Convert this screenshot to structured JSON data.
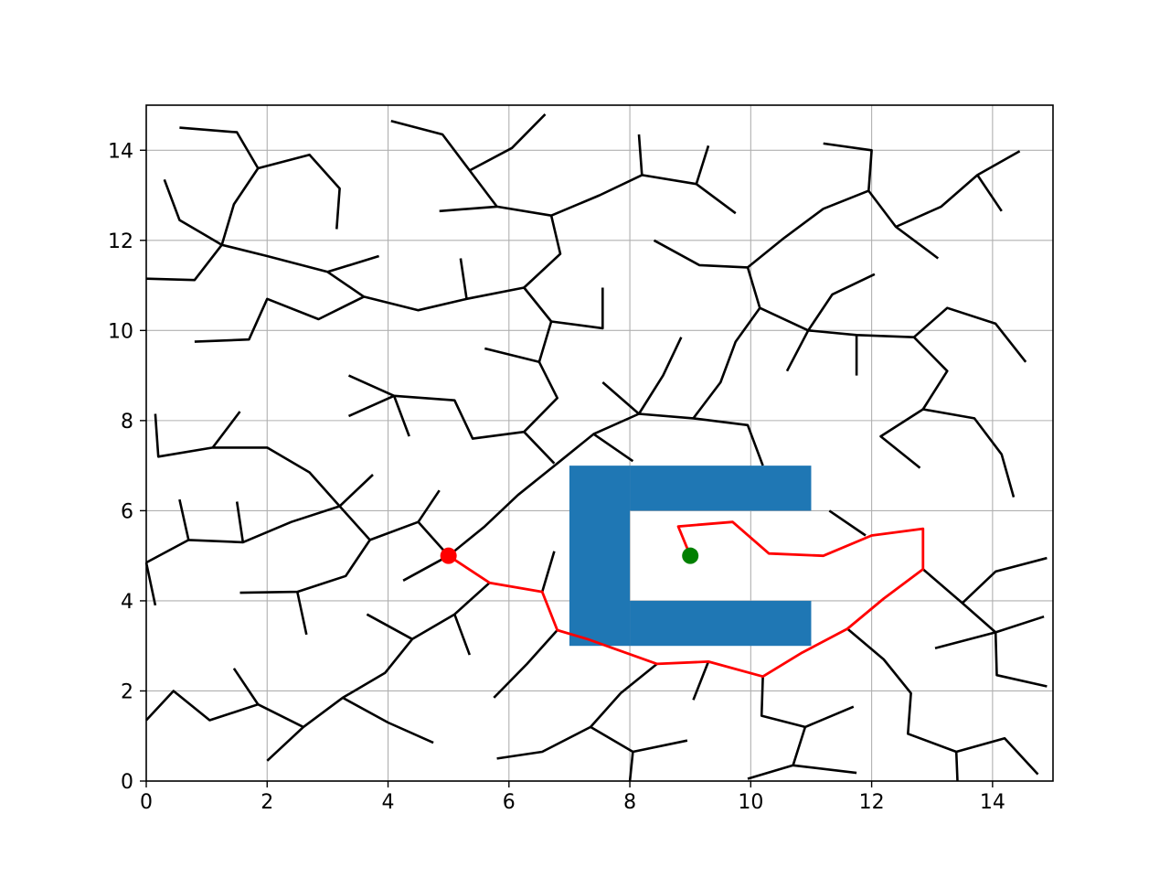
{
  "chart_data": {
    "type": "path-planning",
    "title": "",
    "xlabel": "",
    "ylabel": "",
    "xlim": [
      0,
      15
    ],
    "ylim": [
      0,
      15
    ],
    "grid": true,
    "x_ticks": [
      "0",
      "2",
      "4",
      "6",
      "8",
      "10",
      "12",
      "14"
    ],
    "y_ticks": [
      "0",
      "2",
      "4",
      "6",
      "8",
      "10",
      "12",
      "14"
    ],
    "colors": {
      "tree": "#000000",
      "path": "#ff0000",
      "obstacle": "#1f77b4",
      "start": "#ff0000",
      "goal": "#008000",
      "grid": "#b0b0b0"
    },
    "obstacles": [
      {
        "x0": 7,
        "y0": 3,
        "x1": 8,
        "y1": 7
      },
      {
        "x0": 8,
        "y0": 6,
        "x1": 11,
        "y1": 7
      },
      {
        "x0": 8,
        "y0": 3,
        "x1": 11,
        "y1": 4
      }
    ],
    "start": {
      "x": 5.0,
      "y": 5.0
    },
    "goal": {
      "x": 9.0,
      "y": 5.0
    },
    "path": [
      [
        5.0,
        5.0
      ],
      [
        5.68,
        4.4
      ],
      [
        6.55,
        4.2
      ],
      [
        6.8,
        3.35
      ],
      [
        7.3,
        3.15
      ],
      [
        8.45,
        2.6
      ],
      [
        9.3,
        2.65
      ],
      [
        10.2,
        2.32
      ],
      [
        10.85,
        2.85
      ],
      [
        11.6,
        3.38
      ],
      [
        12.2,
        4.05
      ],
      [
        12.85,
        4.7
      ],
      [
        12.85,
        5.6
      ],
      [
        12.0,
        5.45
      ],
      [
        11.2,
        5.0
      ],
      [
        10.3,
        5.05
      ],
      [
        9.7,
        5.75
      ],
      [
        8.8,
        5.65
      ],
      [
        9.0,
        5.0
      ]
    ],
    "tree": [
      [
        [
          0.55,
          14.5
        ],
        [
          1.5,
          14.4
        ],
        [
          1.85,
          13.6
        ],
        [
          1.45,
          12.8
        ],
        [
          1.25,
          11.9
        ]
      ],
      [
        [
          0.3,
          13.35
        ],
        [
          0.55,
          12.45
        ],
        [
          1.25,
          11.9
        ],
        [
          2.0,
          11.65
        ],
        [
          3.0,
          11.3
        ],
        [
          3.6,
          10.75
        ],
        [
          4.5,
          10.45
        ],
        [
          5.3,
          10.7
        ],
        [
          6.25,
          10.95
        ]
      ],
      [
        [
          1.85,
          13.6
        ],
        [
          2.7,
          13.9
        ],
        [
          3.2,
          13.15
        ],
        [
          3.15,
          12.25
        ]
      ],
      [
        [
          0.0,
          11.15
        ],
        [
          0.8,
          11.12
        ],
        [
          1.25,
          11.9
        ]
      ],
      [
        [
          3.0,
          11.3
        ],
        [
          3.85,
          11.65
        ]
      ],
      [
        [
          0.8,
          9.75
        ],
        [
          1.7,
          9.8
        ],
        [
          2.0,
          10.7
        ],
        [
          2.85,
          10.25
        ],
        [
          3.6,
          10.75
        ]
      ],
      [
        [
          5.2,
          11.6
        ],
        [
          5.3,
          10.7
        ]
      ],
      [
        [
          4.05,
          14.65
        ],
        [
          4.9,
          14.35
        ],
        [
          5.35,
          13.55
        ],
        [
          5.8,
          12.75
        ],
        [
          6.7,
          12.55
        ],
        [
          7.5,
          13.0
        ],
        [
          8.2,
          13.45
        ],
        [
          9.1,
          13.25
        ],
        [
          9.75,
          12.6
        ]
      ],
      [
        [
          5.35,
          13.55
        ],
        [
          6.05,
          14.05
        ],
        [
          6.6,
          14.8
        ]
      ],
      [
        [
          4.85,
          12.65
        ],
        [
          5.8,
          12.75
        ]
      ],
      [
        [
          6.7,
          12.55
        ],
        [
          6.85,
          11.7
        ],
        [
          6.25,
          10.95
        ],
        [
          6.7,
          10.2
        ],
        [
          7.55,
          10.05
        ],
        [
          7.55,
          10.95
        ]
      ],
      [
        [
          8.15,
          14.35
        ],
        [
          8.2,
          13.45
        ]
      ],
      [
        [
          9.1,
          13.25
        ],
        [
          9.3,
          14.1
        ]
      ],
      [
        [
          6.7,
          10.2
        ],
        [
          6.5,
          9.3
        ],
        [
          5.6,
          9.6
        ]
      ],
      [
        [
          6.5,
          9.3
        ],
        [
          6.8,
          8.5
        ],
        [
          6.25,
          7.75
        ],
        [
          5.4,
          7.6
        ],
        [
          5.1,
          8.45
        ],
        [
          4.1,
          8.55
        ],
        [
          3.35,
          8.1
        ]
      ],
      [
        [
          4.1,
          8.55
        ],
        [
          3.35,
          9.0
        ]
      ],
      [
        [
          4.1,
          8.55
        ],
        [
          4.35,
          7.65
        ]
      ],
      [
        [
          6.25,
          7.75
        ],
        [
          6.75,
          7.05
        ]
      ],
      [
        [
          4.5,
          5.75
        ],
        [
          4.85,
          6.45
        ]
      ],
      [
        [
          0.15,
          8.15
        ],
        [
          0.2,
          7.2
        ],
        [
          1.1,
          7.4
        ],
        [
          1.55,
          8.2
        ]
      ],
      [
        [
          1.1,
          7.4
        ],
        [
          2.0,
          7.4
        ],
        [
          2.7,
          6.85
        ],
        [
          3.2,
          6.1
        ],
        [
          3.75,
          6.8
        ]
      ],
      [
        [
          3.2,
          6.1
        ],
        [
          2.4,
          5.75
        ],
        [
          1.6,
          5.3
        ],
        [
          0.7,
          5.35
        ],
        [
          0.55,
          6.25
        ]
      ],
      [
        [
          1.6,
          5.3
        ],
        [
          1.5,
          6.2
        ]
      ],
      [
        [
          0.0,
          4.85
        ],
        [
          0.7,
          5.35
        ]
      ],
      [
        [
          0.0,
          4.85
        ],
        [
          0.15,
          3.9
        ]
      ],
      [
        [
          3.2,
          6.1
        ],
        [
          3.7,
          5.35
        ],
        [
          4.5,
          5.75
        ],
        [
          5.0,
          5.0
        ],
        [
          5.6,
          5.65
        ],
        [
          6.15,
          6.35
        ],
        [
          6.8,
          7.05
        ],
        [
          7.4,
          7.7
        ],
        [
          8.15,
          8.15
        ],
        [
          9.05,
          8.05
        ],
        [
          9.95,
          7.9
        ],
        [
          10.2,
          7.0
        ]
      ],
      [
        [
          7.4,
          7.7
        ],
        [
          8.05,
          7.1
        ]
      ],
      [
        [
          5.0,
          5.0
        ],
        [
          4.25,
          4.45
        ]
      ],
      [
        [
          3.7,
          5.35
        ],
        [
          3.3,
          4.55
        ],
        [
          2.5,
          4.2
        ],
        [
          1.55,
          4.18
        ]
      ],
      [
        [
          2.5,
          4.2
        ],
        [
          2.65,
          3.25
        ]
      ],
      [
        [
          8.15,
          8.15
        ],
        [
          7.55,
          8.85
        ]
      ],
      [
        [
          8.15,
          8.15
        ],
        [
          8.55,
          9.0
        ],
        [
          8.85,
          9.85
        ]
      ],
      [
        [
          9.05,
          8.05
        ],
        [
          9.5,
          8.85
        ],
        [
          9.75,
          9.75
        ],
        [
          10.15,
          10.5
        ],
        [
          10.95,
          10.0
        ],
        [
          11.35,
          10.8
        ],
        [
          12.05,
          11.25
        ]
      ],
      [
        [
          10.15,
          10.5
        ],
        [
          9.95,
          11.4
        ],
        [
          9.15,
          11.45
        ],
        [
          8.4,
          12.0
        ]
      ],
      [
        [
          9.95,
          11.4
        ],
        [
          10.55,
          12.05
        ],
        [
          11.2,
          12.7
        ],
        [
          11.95,
          13.1
        ],
        [
          12.4,
          12.3
        ],
        [
          13.1,
          11.6
        ]
      ],
      [
        [
          11.95,
          13.1
        ],
        [
          12.0,
          14.0
        ],
        [
          11.2,
          14.15
        ]
      ],
      [
        [
          12.4,
          12.3
        ],
        [
          13.15,
          12.75
        ],
        [
          13.75,
          13.45
        ],
        [
          14.45,
          13.98
        ]
      ],
      [
        [
          13.75,
          13.45
        ],
        [
          14.15,
          12.65
        ]
      ],
      [
        [
          10.95,
          10.0
        ],
        [
          10.6,
          9.1
        ]
      ],
      [
        [
          10.95,
          10.0
        ],
        [
          11.75,
          9.9
        ],
        [
          12.7,
          9.85
        ],
        [
          13.25,
          9.1
        ],
        [
          12.85,
          8.25
        ],
        [
          13.7,
          8.05
        ],
        [
          14.15,
          7.25
        ],
        [
          14.35,
          6.3
        ]
      ],
      [
        [
          11.75,
          9.9
        ],
        [
          11.75,
          9.0
        ]
      ],
      [
        [
          12.7,
          9.85
        ],
        [
          13.25,
          10.5
        ],
        [
          14.05,
          10.15
        ],
        [
          14.55,
          9.3
        ]
      ],
      [
        [
          12.85,
          8.25
        ],
        [
          12.15,
          7.65
        ],
        [
          12.8,
          6.95
        ]
      ],
      [
        [
          11.3,
          6.0
        ],
        [
          11.9,
          5.45
        ]
      ],
      [
        [
          12.85,
          4.7
        ],
        [
          13.5,
          3.95
        ],
        [
          14.05,
          4.65
        ],
        [
          14.9,
          4.95
        ]
      ],
      [
        [
          13.5,
          3.95
        ],
        [
          14.05,
          3.3
        ],
        [
          14.07,
          2.35
        ],
        [
          14.9,
          2.1
        ]
      ],
      [
        [
          13.05,
          2.95
        ],
        [
          14.05,
          3.3
        ],
        [
          14.85,
          3.65
        ]
      ],
      [
        [
          11.6,
          3.38
        ],
        [
          12.2,
          2.7
        ],
        [
          12.65,
          1.95
        ],
        [
          12.6,
          1.05
        ],
        [
          13.4,
          0.65
        ],
        [
          14.2,
          0.95
        ],
        [
          14.75,
          0.15
        ]
      ],
      [
        [
          13.4,
          0.65
        ],
        [
          13.42,
          0.0
        ]
      ],
      [
        [
          10.2,
          2.32
        ],
        [
          10.18,
          1.45
        ],
        [
          10.9,
          1.2
        ],
        [
          11.7,
          1.65
        ]
      ],
      [
        [
          10.9,
          1.2
        ],
        [
          10.7,
          0.35
        ],
        [
          9.95,
          0.05
        ]
      ],
      [
        [
          10.7,
          0.35
        ],
        [
          11.75,
          0.18
        ]
      ],
      [
        [
          9.3,
          2.65
        ],
        [
          9.05,
          1.8
        ]
      ],
      [
        [
          8.45,
          2.6
        ],
        [
          7.85,
          1.95
        ],
        [
          7.35,
          1.2
        ],
        [
          8.05,
          0.65
        ],
        [
          8.95,
          0.9
        ]
      ],
      [
        [
          7.35,
          1.2
        ],
        [
          6.55,
          0.65
        ],
        [
          5.8,
          0.5
        ]
      ],
      [
        [
          8.05,
          0.65
        ],
        [
          8.0,
          0.0
        ]
      ],
      [
        [
          6.55,
          4.2
        ],
        [
          6.75,
          5.1
        ]
      ],
      [
        [
          5.68,
          4.4
        ],
        [
          5.1,
          3.7
        ],
        [
          4.4,
          3.15
        ],
        [
          3.65,
          3.7
        ]
      ],
      [
        [
          5.1,
          3.7
        ],
        [
          5.35,
          2.8
        ]
      ],
      [
        [
          4.4,
          3.15
        ],
        [
          3.95,
          2.4
        ],
        [
          3.25,
          1.85
        ],
        [
          2.6,
          1.2
        ],
        [
          2.0,
          0.45
        ]
      ],
      [
        [
          3.25,
          1.85
        ],
        [
          4.0,
          1.3
        ],
        [
          4.75,
          0.85
        ]
      ],
      [
        [
          2.6,
          1.2
        ],
        [
          1.85,
          1.7
        ],
        [
          1.05,
          1.35
        ],
        [
          0.45,
          2.0
        ],
        [
          0.0,
          1.35
        ]
      ],
      [
        [
          1.85,
          1.7
        ],
        [
          1.45,
          2.5
        ]
      ],
      [
        [
          6.8,
          3.35
        ],
        [
          6.3,
          2.6
        ],
        [
          5.75,
          1.85
        ]
      ]
    ]
  }
}
